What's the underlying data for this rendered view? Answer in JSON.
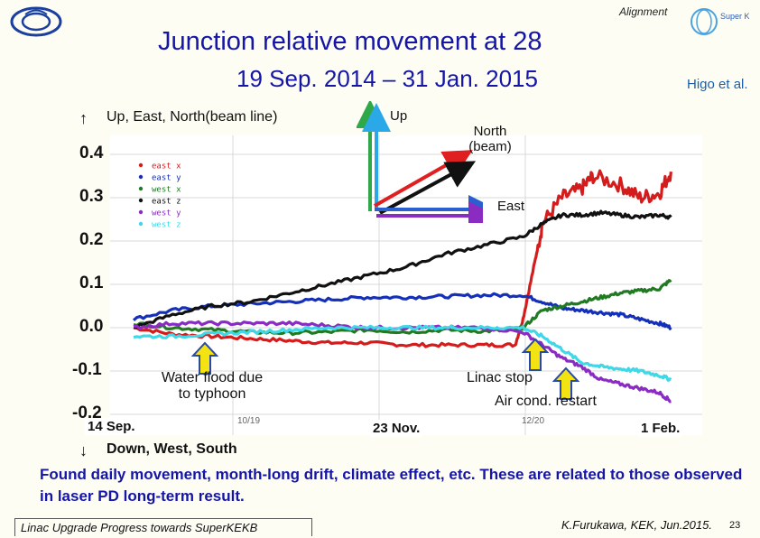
{
  "header": {
    "tag": "Alignment",
    "title_line1": "Junction relative movement at 28",
    "title_line2": "19 Sep. 2014 – 31 Jan. 2015",
    "author": "Higo et al.",
    "logo_right_text": "Super KEKB"
  },
  "direction_up": {
    "arrow": "↑",
    "text": "Up, East, North(beam line)"
  },
  "direction_down": {
    "arrow": "↓",
    "text": "Down, West, South"
  },
  "axes_diagram": {
    "up_label": "Up",
    "north_label_line1": "North",
    "north_label_line2": "(beam)",
    "east_label": "East"
  },
  "annotations": {
    "water_flood_line1": "Water flood due",
    "water_flood_line2": "to typhoon",
    "linac_stop": "Linac stop",
    "air_cond": "Air cond. restart"
  },
  "dates": {
    "start": "14 Sep.",
    "mid": "23 Nov.",
    "end": "1 Feb."
  },
  "tick_small": {
    "left": "10/19",
    "right": "12/20"
  },
  "summary": "Found daily movement, month-long drift, climate effect, etc. These are related to those observed in laser PD long-term result.",
  "footer": {
    "left": "Linac Upgrade Progress towards SuperKEKB",
    "right": "K.Furukawa, KEK, Jun.2015.",
    "page": "23"
  },
  "chart_data": {
    "type": "line",
    "title": "",
    "xlabel": "",
    "ylabel": "",
    "ylim": [
      -0.22,
      0.44
    ],
    "yticks": [
      0.4,
      0.3,
      0.2,
      0.1,
      0.0,
      -0.1,
      -0.2
    ],
    "ytick_labels": [
      "0.4",
      "0.3",
      "0.2",
      "0.1",
      "0.0",
      "-0.1",
      "-0.2"
    ],
    "grid": true,
    "legend_position": "top-left",
    "x_unit": "days from 14 Sep.",
    "xlim": [
      0,
      140
    ],
    "series": [
      {
        "name": "east x",
        "color": "#d41c1c",
        "x": [
          0,
          10,
          20,
          30,
          40,
          50,
          60,
          70,
          80,
          90,
          98,
          100,
          103,
          105,
          110,
          115,
          118,
          125,
          130,
          135,
          138
        ],
        "y": [
          0.0,
          -0.015,
          -0.02,
          -0.025,
          -0.03,
          -0.035,
          -0.035,
          -0.04,
          -0.04,
          -0.04,
          -0.04,
          0.02,
          0.15,
          0.24,
          0.3,
          0.32,
          0.35,
          0.33,
          0.3,
          0.31,
          0.36
        ]
      },
      {
        "name": "east y",
        "color": "#1530b8",
        "x": [
          0,
          10,
          20,
          30,
          40,
          50,
          60,
          70,
          80,
          90,
          100,
          105,
          110,
          115,
          120,
          125,
          130,
          135,
          138
        ],
        "y": [
          0.02,
          0.04,
          0.05,
          0.055,
          0.06,
          0.065,
          0.07,
          0.07,
          0.072,
          0.075,
          0.075,
          0.06,
          0.045,
          0.04,
          0.035,
          0.03,
          0.02,
          0.01,
          0.0
        ]
      },
      {
        "name": "west x",
        "color": "#1f7a22",
        "x": [
          0,
          10,
          20,
          30,
          40,
          50,
          60,
          70,
          80,
          90,
          98,
          100,
          105,
          110,
          115,
          120,
          125,
          130,
          135,
          138
        ],
        "y": [
          0.01,
          0.0,
          -0.005,
          -0.01,
          -0.012,
          -0.01,
          -0.005,
          -0.01,
          -0.005,
          -0.008,
          -0.005,
          0.0,
          0.04,
          0.05,
          0.06,
          0.07,
          0.08,
          0.085,
          0.09,
          0.11
        ]
      },
      {
        "name": "east z",
        "color": "#111111",
        "x": [
          0,
          10,
          20,
          30,
          40,
          50,
          60,
          70,
          80,
          90,
          100,
          105,
          110,
          115,
          120,
          125,
          130,
          135,
          138
        ],
        "y": [
          0.0,
          0.03,
          0.05,
          0.06,
          0.08,
          0.1,
          0.12,
          0.14,
          0.17,
          0.19,
          0.21,
          0.24,
          0.26,
          0.26,
          0.265,
          0.26,
          0.255,
          0.26,
          0.255
        ]
      },
      {
        "name": "west y",
        "color": "#8a2bc2",
        "x": [
          0,
          10,
          20,
          30,
          40,
          50,
          60,
          70,
          80,
          90,
          100,
          105,
          110,
          115,
          120,
          125,
          130,
          135,
          138
        ],
        "y": [
          0.0,
          0.01,
          0.01,
          0.01,
          0.01,
          0.005,
          0.0,
          0.0,
          0.0,
          0.0,
          -0.01,
          -0.04,
          -0.07,
          -0.09,
          -0.12,
          -0.13,
          -0.14,
          -0.15,
          -0.17
        ]
      },
      {
        "name": "west z",
        "color": "#3fd8e8",
        "x": [
          0,
          10,
          20,
          30,
          40,
          50,
          60,
          70,
          80,
          90,
          100,
          105,
          110,
          115,
          120,
          125,
          130,
          135,
          138
        ],
        "y": [
          -0.02,
          -0.02,
          -0.015,
          -0.01,
          -0.005,
          0.0,
          0.0,
          0.0,
          0.0,
          0.0,
          0.0,
          -0.02,
          -0.05,
          -0.08,
          -0.09,
          -0.095,
          -0.1,
          -0.11,
          -0.12
        ]
      }
    ]
  }
}
